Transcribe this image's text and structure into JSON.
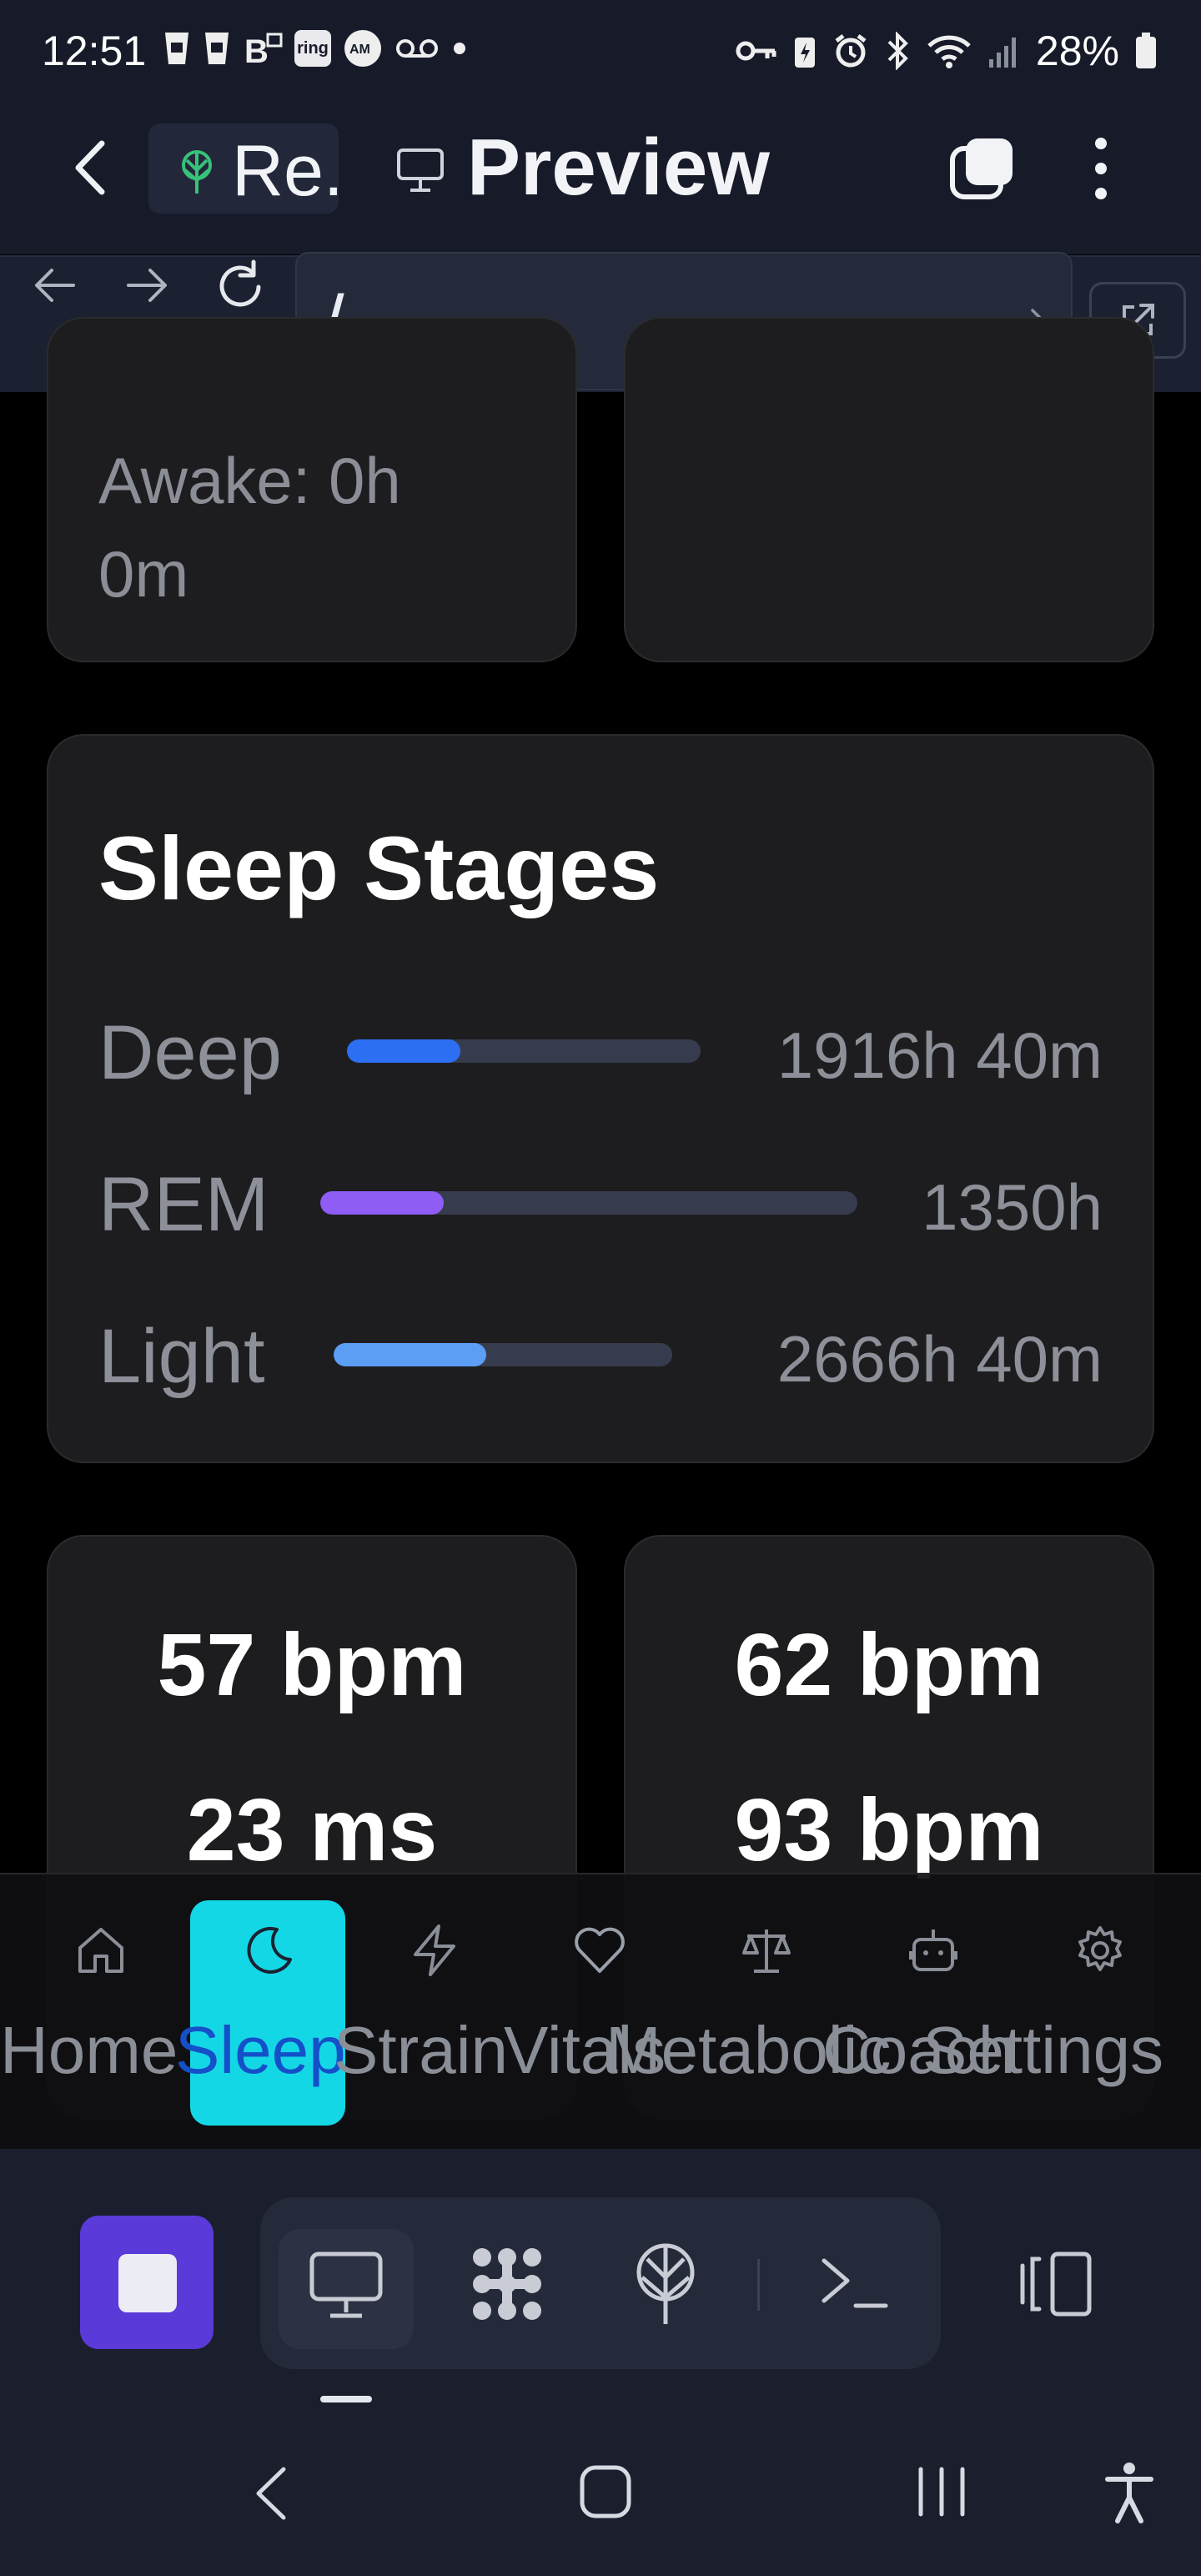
{
  "status_bar": {
    "time": "12:51",
    "battery": "28%",
    "left_icons": [
      "cup-icon",
      "cup-icon",
      "B-icon",
      "ring",
      "amex-icon",
      "voicemail-icon",
      "dot"
    ],
    "right_icons": [
      "key-icon",
      "battery-saver-icon",
      "alarm-icon",
      "bluetooth-icon",
      "wifi-icon",
      "signal-icon",
      "battery-icon"
    ],
    "ring_label": "ring"
  },
  "header": {
    "tab_label": "Re.",
    "title": "Preview"
  },
  "url_bar": {
    "value": "/"
  },
  "sleep_summary": {
    "line1": "Awake: 0h",
    "line2": "0m"
  },
  "sleep_stages": {
    "title": "Sleep Stages",
    "stages": [
      {
        "label": "Deep",
        "value": "1916h 40m",
        "fraction": 0.32,
        "color": "#2d6ff2"
      },
      {
        "label": "REM",
        "value": "1350h",
        "fraction": 0.23,
        "color": "#8f5cf5"
      },
      {
        "label": "Light",
        "value": "2666h 40m",
        "fraction": 0.45,
        "color": "#5d9ef5"
      }
    ]
  },
  "heart_metrics": {
    "left": [
      "57 bpm",
      "23 ms"
    ],
    "right": [
      "62 bpm",
      "93 bpm"
    ]
  },
  "bottom_nav": {
    "active": "Sleep",
    "items": [
      {
        "label": "Home",
        "icon": "home-icon"
      },
      {
        "label": "Sleep",
        "icon": "moon-icon"
      },
      {
        "label": "Strain",
        "icon": "bolt-icon"
      },
      {
        "label": "Vitals",
        "icon": "heart-icon"
      },
      {
        "label": "Metabolic",
        "icon": "scale-icon"
      },
      {
        "label": "Coach",
        "icon": "robot-icon"
      },
      {
        "label": "Settings",
        "icon": "gear-icon"
      }
    ]
  },
  "colors": {
    "accent_active": "#14d7e6",
    "stop_button": "#5a3ad9"
  }
}
